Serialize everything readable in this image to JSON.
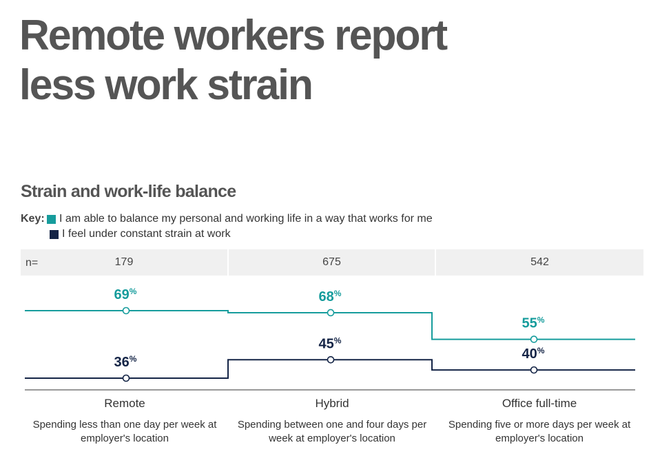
{
  "title_line1": "Remote workers report",
  "title_line2": "less work strain",
  "subtitle": "Strain and work-life balance",
  "key": {
    "label": "Key:",
    "items": [
      {
        "text": "I am able to balance my personal and working life in a way that works for me",
        "color": "#169c9c"
      },
      {
        "text": "I feel under constant strain at work",
        "color": "#142446"
      }
    ]
  },
  "n_label": "n=",
  "groups": [
    {
      "name": "Remote",
      "n": "179",
      "description": "Spending less than one day per week at employer's location"
    },
    {
      "name": "Hybrid",
      "n": "675",
      "description": "Spending between one and four days per week at employer's location"
    },
    {
      "name": "Office full-time",
      "n": "542",
      "description": "Spending five or more days per week at employer's location"
    }
  ],
  "chart_data": {
    "type": "line",
    "categories": [
      "Remote",
      "Hybrid",
      "Office full-time"
    ],
    "series": [
      {
        "name": "I am able to balance my personal and working life in a way that works for me",
        "values": [
          69,
          68,
          55
        ],
        "color": "#169c9c"
      },
      {
        "name": "I feel under constant strain at work",
        "values": [
          36,
          45,
          40
        ],
        "color": "#142446"
      }
    ],
    "value_suffix": "%",
    "step": true,
    "grid": false,
    "legend_position": "top-left"
  }
}
